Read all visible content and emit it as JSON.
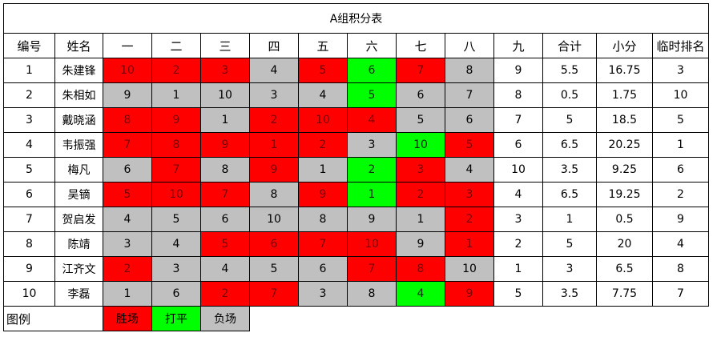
{
  "title": "A组积分表",
  "headers": [
    "编号",
    "姓名",
    "一",
    "二",
    "三",
    "四",
    "五",
    "六",
    "七",
    "八",
    "九",
    "合计",
    "小分",
    "临时排名"
  ],
  "rows": [
    {
      "id": "1",
      "name": "朱建锋",
      "cells": [
        {
          "v": "10",
          "s": "win"
        },
        {
          "v": "2",
          "s": "win"
        },
        {
          "v": "3",
          "s": "win"
        },
        {
          "v": "4",
          "s": "loss"
        },
        {
          "v": "5",
          "s": "win"
        },
        {
          "v": "6",
          "s": "draw"
        },
        {
          "v": "7",
          "s": "win"
        },
        {
          "v": "8",
          "s": "loss"
        },
        {
          "v": "9",
          "s": "plain"
        }
      ],
      "total": "5.5",
      "small": "16.75",
      "rank": "3"
    },
    {
      "id": "2",
      "name": "朱相如",
      "cells": [
        {
          "v": "9",
          "s": "loss"
        },
        {
          "v": "1",
          "s": "loss"
        },
        {
          "v": "10",
          "s": "loss"
        },
        {
          "v": "3",
          "s": "loss"
        },
        {
          "v": "4",
          "s": "loss"
        },
        {
          "v": "5",
          "s": "draw"
        },
        {
          "v": "6",
          "s": "loss"
        },
        {
          "v": "7",
          "s": "loss"
        },
        {
          "v": "8",
          "s": "plain"
        }
      ],
      "total": "0.5",
      "small": "1.75",
      "rank": "10"
    },
    {
      "id": "3",
      "name": "戴晓涵",
      "cells": [
        {
          "v": "8",
          "s": "win"
        },
        {
          "v": "9",
          "s": "win"
        },
        {
          "v": "1",
          "s": "loss"
        },
        {
          "v": "2",
          "s": "win"
        },
        {
          "v": "10",
          "s": "win"
        },
        {
          "v": "4",
          "s": "win"
        },
        {
          "v": "5",
          "s": "loss"
        },
        {
          "v": "6",
          "s": "loss"
        },
        {
          "v": "7",
          "s": "plain"
        }
      ],
      "total": "5",
      "small": "18.5",
      "rank": "5"
    },
    {
      "id": "4",
      "name": "韦振强",
      "cells": [
        {
          "v": "7",
          "s": "win"
        },
        {
          "v": "8",
          "s": "win"
        },
        {
          "v": "9",
          "s": "win"
        },
        {
          "v": "1",
          "s": "win"
        },
        {
          "v": "2",
          "s": "win"
        },
        {
          "v": "3",
          "s": "loss"
        },
        {
          "v": "10",
          "s": "draw"
        },
        {
          "v": "5",
          "s": "win"
        },
        {
          "v": "6",
          "s": "plain"
        }
      ],
      "total": "6.5",
      "small": "20.25",
      "rank": "1"
    },
    {
      "id": "5",
      "name": "梅凡",
      "cells": [
        {
          "v": "6",
          "s": "loss"
        },
        {
          "v": "7",
          "s": "win"
        },
        {
          "v": "8",
          "s": "loss"
        },
        {
          "v": "9",
          "s": "win"
        },
        {
          "v": "1",
          "s": "loss"
        },
        {
          "v": "2",
          "s": "draw"
        },
        {
          "v": "3",
          "s": "win"
        },
        {
          "v": "4",
          "s": "loss"
        },
        {
          "v": "10",
          "s": "plain"
        }
      ],
      "total": "3.5",
      "small": "9.25",
      "rank": "6"
    },
    {
      "id": "6",
      "name": "吴镝",
      "cells": [
        {
          "v": "5",
          "s": "win"
        },
        {
          "v": "10",
          "s": "win"
        },
        {
          "v": "7",
          "s": "win"
        },
        {
          "v": "8",
          "s": "loss"
        },
        {
          "v": "9",
          "s": "win"
        },
        {
          "v": "1",
          "s": "draw"
        },
        {
          "v": "2",
          "s": "win"
        },
        {
          "v": "3",
          "s": "win"
        },
        {
          "v": "4",
          "s": "plain"
        }
      ],
      "total": "6.5",
      "small": "19.25",
      "rank": "2"
    },
    {
      "id": "7",
      "name": "贺启发",
      "cells": [
        {
          "v": "4",
          "s": "loss"
        },
        {
          "v": "5",
          "s": "loss"
        },
        {
          "v": "6",
          "s": "loss"
        },
        {
          "v": "10",
          "s": "loss"
        },
        {
          "v": "8",
          "s": "loss"
        },
        {
          "v": "9",
          "s": "loss"
        },
        {
          "v": "1",
          "s": "loss"
        },
        {
          "v": "2",
          "s": "win"
        },
        {
          "v": "3",
          "s": "plain"
        }
      ],
      "total": "1",
      "small": "0.5",
      "rank": "9"
    },
    {
      "id": "8",
      "name": "陈靖",
      "cells": [
        {
          "v": "3",
          "s": "loss"
        },
        {
          "v": "4",
          "s": "loss"
        },
        {
          "v": "5",
          "s": "win"
        },
        {
          "v": "6",
          "s": "win"
        },
        {
          "v": "7",
          "s": "win"
        },
        {
          "v": "10",
          "s": "win"
        },
        {
          "v": "9",
          "s": "loss"
        },
        {
          "v": "1",
          "s": "win"
        },
        {
          "v": "2",
          "s": "plain"
        }
      ],
      "total": "5",
      "small": "20",
      "rank": "4"
    },
    {
      "id": "9",
      "name": "江齐文",
      "cells": [
        {
          "v": "2",
          "s": "win"
        },
        {
          "v": "3",
          "s": "loss"
        },
        {
          "v": "4",
          "s": "loss"
        },
        {
          "v": "5",
          "s": "loss"
        },
        {
          "v": "6",
          "s": "loss"
        },
        {
          "v": "7",
          "s": "win"
        },
        {
          "v": "8",
          "s": "win"
        },
        {
          "v": "10",
          "s": "loss"
        },
        {
          "v": "1",
          "s": "plain"
        }
      ],
      "total": "3",
      "small": "6.5",
      "rank": "8"
    },
    {
      "id": "10",
      "name": "李磊",
      "cells": [
        {
          "v": "1",
          "s": "loss"
        },
        {
          "v": "6",
          "s": "loss"
        },
        {
          "v": "2",
          "s": "win"
        },
        {
          "v": "7",
          "s": "win"
        },
        {
          "v": "3",
          "s": "loss"
        },
        {
          "v": "8",
          "s": "loss"
        },
        {
          "v": "4",
          "s": "draw"
        },
        {
          "v": "9",
          "s": "win"
        },
        {
          "v": "5",
          "s": "plain"
        }
      ],
      "total": "3.5",
      "small": "7.75",
      "rank": "7"
    }
  ],
  "legend": {
    "label": "图例",
    "win": "胜场",
    "draw": "打平",
    "loss": "负场"
  },
  "colors": {
    "win": "#ff0000",
    "draw": "#00ff00",
    "loss": "#c0c0c0"
  }
}
